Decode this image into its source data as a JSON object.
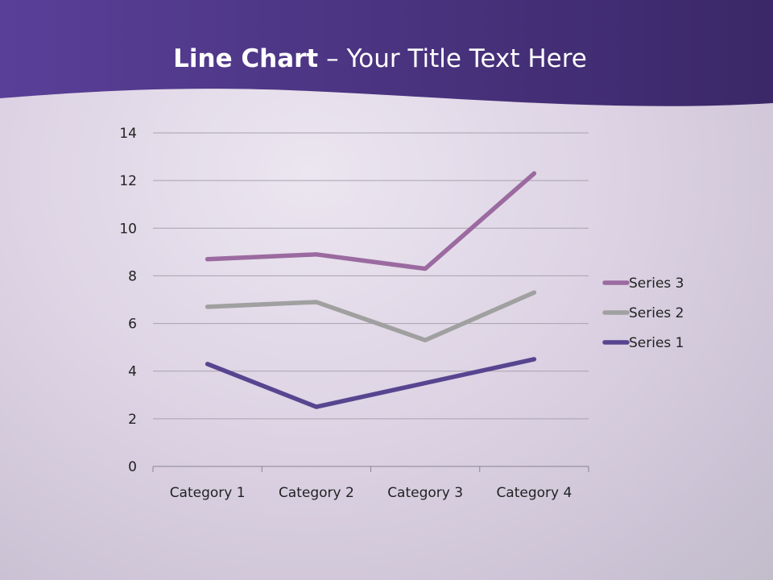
{
  "slide": {
    "title_bold": "Line Chart",
    "title_rest": " – Your Title Text Here",
    "header_color": "#4a3585"
  },
  "chart_data": {
    "type": "line",
    "title": "",
    "xlabel": "",
    "ylabel": "",
    "categories": [
      "Category 1",
      "Category 2",
      "Category 3",
      "Category 4"
    ],
    "ylim": [
      0,
      14
    ],
    "yticks": [
      0,
      2,
      4,
      6,
      8,
      10,
      12,
      14
    ],
    "grid": true,
    "legend": "right",
    "series": [
      {
        "name": "Series 1",
        "values": [
          4.3,
          2.5,
          3.5,
          4.5
        ],
        "color": "#574590"
      },
      {
        "name": "Series 2",
        "values": [
          6.7,
          6.9,
          5.3,
          7.3
        ],
        "color": "#a0a0a0"
      },
      {
        "name": "Series 3",
        "values": [
          8.7,
          8.9,
          8.3,
          12.3
        ],
        "color": "#9b6aa0"
      }
    ]
  }
}
